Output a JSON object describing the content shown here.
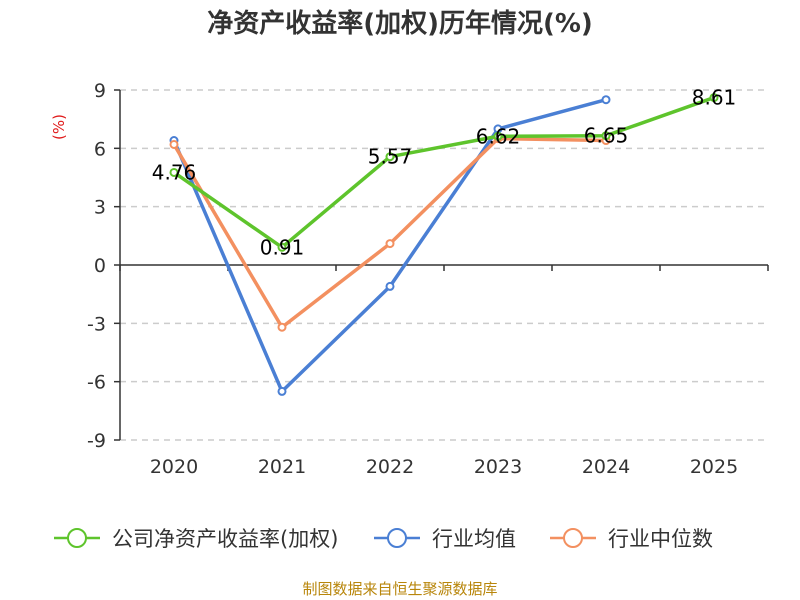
{
  "chart_data": {
    "type": "line",
    "title": "净资产收益率(加权)历年情况(%)",
    "ylabel": "(%)",
    "xlabel": "",
    "categories": [
      "2020",
      "2021",
      "2022",
      "2023",
      "2024",
      "2025"
    ],
    "ylim": [
      -9,
      9
    ],
    "yticks": [
      9,
      6,
      3,
      0,
      -3,
      -6,
      -9
    ],
    "grid": true,
    "legend_position": "bottom",
    "series": [
      {
        "name": "公司净资产收益率(加权)",
        "color": "#5ec42c",
        "values": [
          4.76,
          0.91,
          5.57,
          6.62,
          6.65,
          8.61
        ],
        "labels": [
          "4.76",
          "0.91",
          "5.57",
          "6.62",
          "6.65",
          "8.61"
        ],
        "markers": true
      },
      {
        "name": "行业均值",
        "color": "#4a7fd4",
        "values": [
          6.4,
          -6.5,
          -1.1,
          7.0,
          8.5,
          null
        ],
        "markers": true
      },
      {
        "name": "行业中位数",
        "color": "#f39060",
        "values": [
          6.2,
          -3.2,
          1.1,
          6.5,
          6.4,
          null
        ],
        "markers": true
      }
    ],
    "source": "制图数据来自恒生聚源数据库"
  }
}
